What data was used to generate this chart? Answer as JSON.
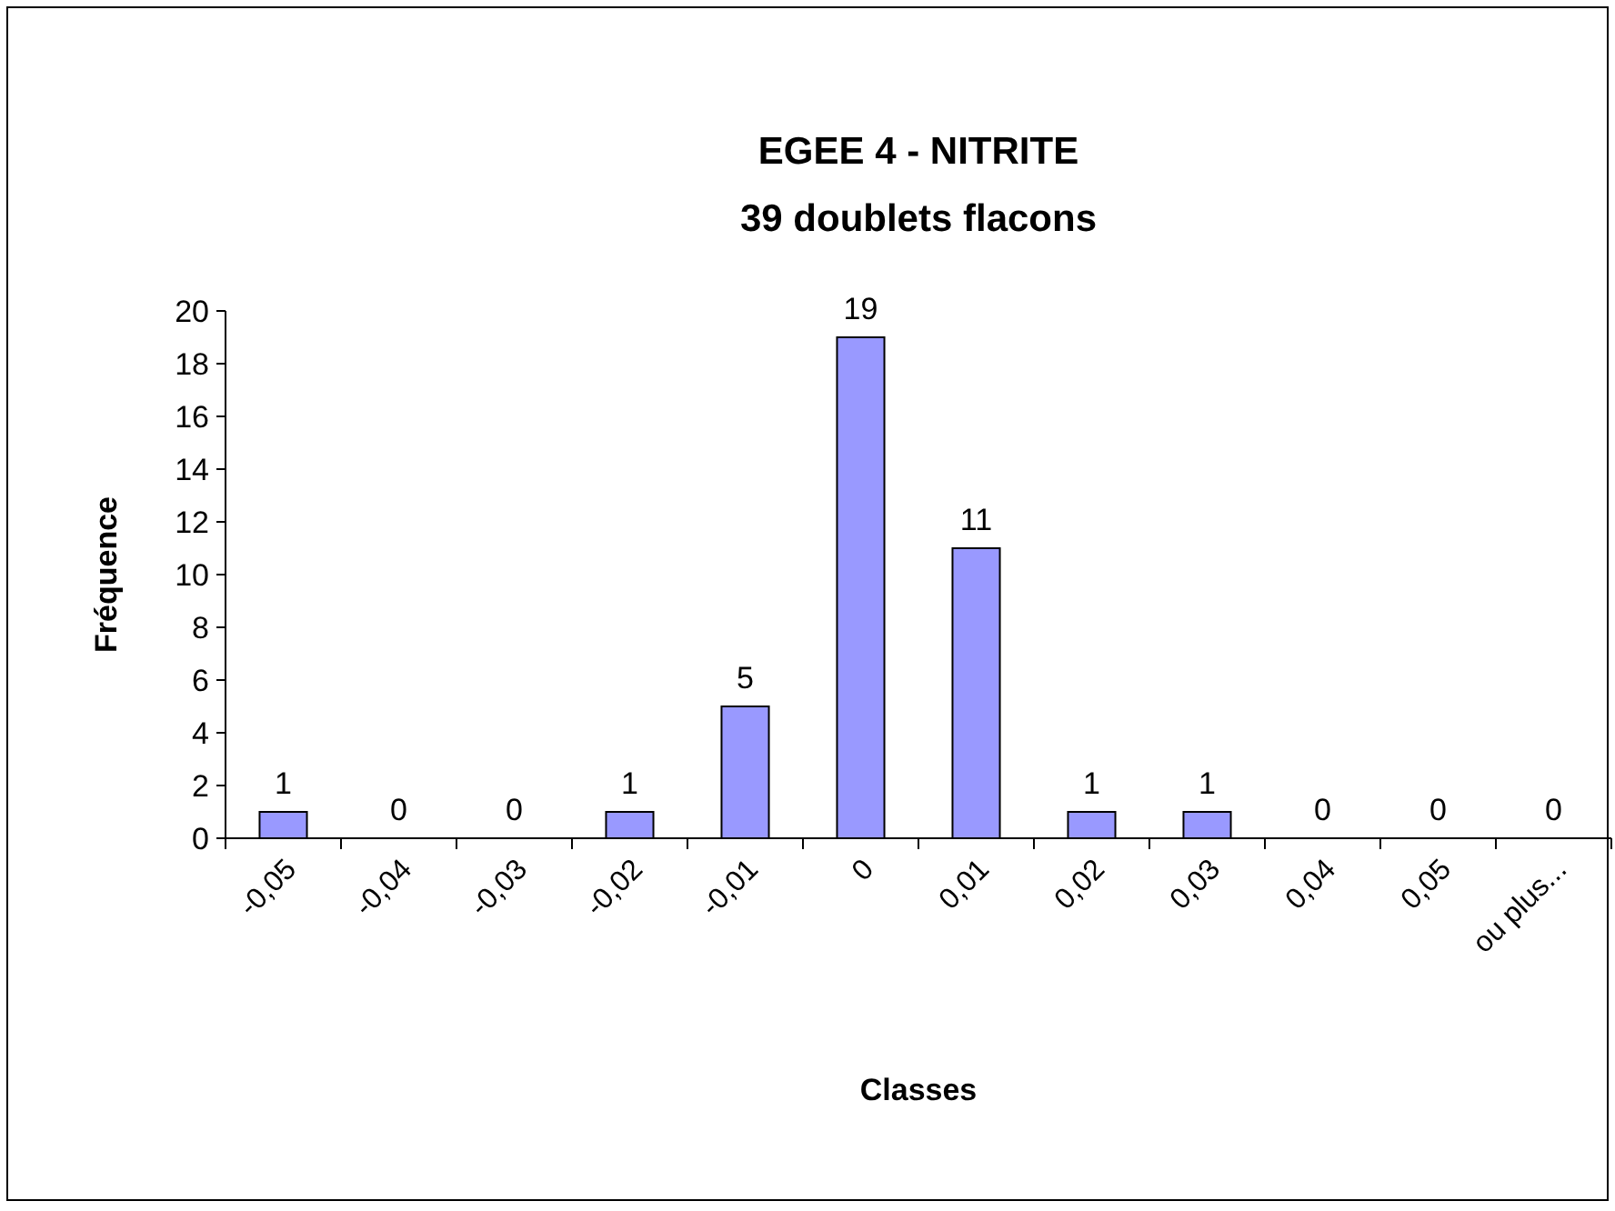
{
  "chart_data": {
    "type": "bar",
    "title": "EGEE 4 - NITRITE",
    "subtitle": "39 doublets flacons",
    "xlabel": "Classes",
    "ylabel": "Fréquence",
    "categories": [
      "-0,05",
      "-0,04",
      "-0,03",
      "-0,02",
      "-0,01",
      "0",
      "0,01",
      "0,02",
      "0,03",
      "0,04",
      "0,05",
      "ou plus..."
    ],
    "values": [
      1,
      0,
      0,
      1,
      5,
      19,
      11,
      1,
      1,
      0,
      0,
      0
    ],
    "color": "#9999ff",
    "ylim": [
      0,
      20
    ],
    "yticks": [
      0,
      2,
      4,
      6,
      8,
      10,
      12,
      14,
      16,
      18,
      20
    ],
    "grid": false,
    "data_labels": true
  }
}
